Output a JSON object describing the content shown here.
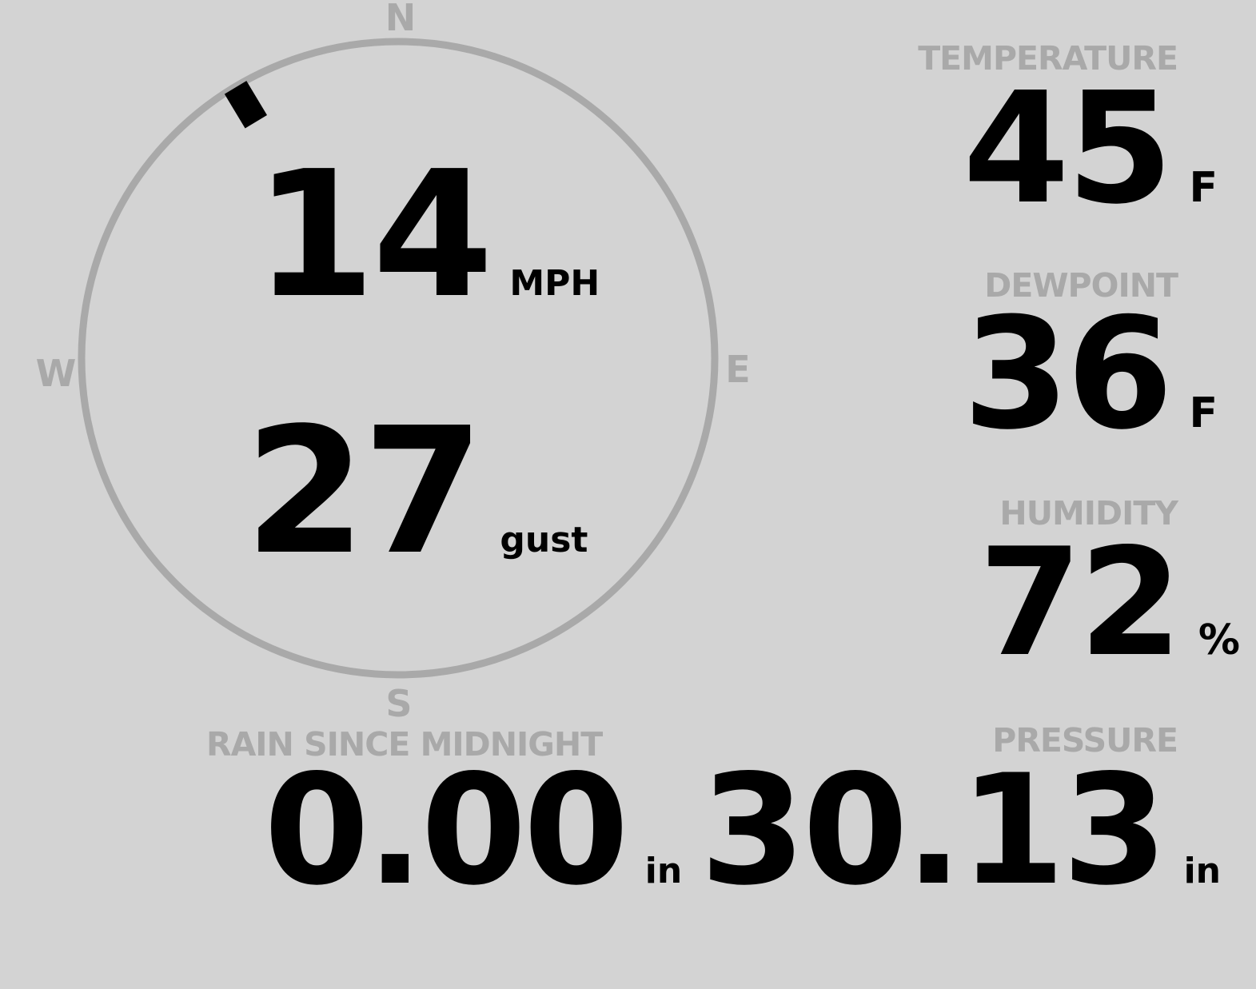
{
  "colors": {
    "background": "#d3d3d3",
    "label": "#a9a9a9",
    "value": "#000000",
    "ring": "#a9a9a9"
  },
  "wind": {
    "direction_deg": 329,
    "cardinals": {
      "n": "N",
      "e": "E",
      "s": "S",
      "w": "W"
    },
    "speed": "14",
    "speed_unit": "MPH",
    "gust": "27",
    "gust_unit": "gust"
  },
  "temperature": {
    "label": "TEMPERATURE",
    "value": "45",
    "unit": "F"
  },
  "dewpoint": {
    "label": "DEWPOINT",
    "value": "36",
    "unit": "F"
  },
  "humidity": {
    "label": "HUMIDITY",
    "value": "72",
    "unit": "%"
  },
  "rain": {
    "label": "RAIN SINCE MIDNIGHT",
    "value": "0.00",
    "unit": "in"
  },
  "pressure": {
    "label": "PRESSURE",
    "value": "30.13",
    "unit": "in"
  }
}
